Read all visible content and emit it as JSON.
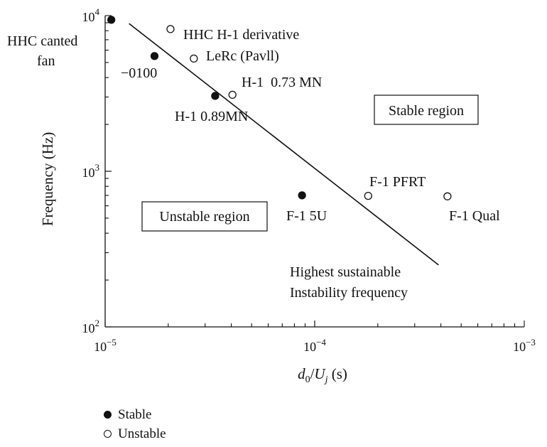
{
  "chart_data": {
    "type": "scatter",
    "xscale": "log",
    "yscale": "log",
    "xlim": [
      1e-05,
      0.001
    ],
    "ylim": [
      100,
      10000
    ],
    "xlabel_base": "d",
    "xlabel_base_sub": "0",
    "xlabel_mid": "/U",
    "xlabel_mid_sub": "j",
    "xlabel_tail": " (s)",
    "ylabel": "Frequency (Hz)",
    "x_ticks": [
      {
        "value": 1e-05,
        "base": "10",
        "exp": "−5"
      },
      {
        "value": 0.0001,
        "base": "10",
        "exp": "−4"
      },
      {
        "value": 0.001,
        "base": "10",
        "exp": "−3"
      }
    ],
    "y_ticks": [
      {
        "value": 100,
        "base": "10",
        "exp": "2"
      },
      {
        "value": 1000,
        "base": "10",
        "exp": "3"
      },
      {
        "value": 10000,
        "base": "10",
        "exp": "4"
      }
    ],
    "grid": false,
    "series": [
      {
        "name": "Stable",
        "marker": "filled-circle",
        "points": [
          {
            "x": 1.07e-05,
            "y": 9400,
            "label": "HHC canted fan"
          },
          {
            "x": 1.72e-05,
            "y": 5500,
            "label": "−0100"
          },
          {
            "x": 3.35e-05,
            "y": 3050,
            "label": "H-1 0.89MN"
          },
          {
            "x": 8.7e-05,
            "y": 700,
            "label": "F-1 5U"
          }
        ]
      },
      {
        "name": "Unstable",
        "marker": "hollow-circle",
        "points": [
          {
            "x": 2.05e-05,
            "y": 8200,
            "label": "HHC H-1 derivative"
          },
          {
            "x": 2.65e-05,
            "y": 5300,
            "label": "LeRc (Pavll)"
          },
          {
            "x": 4.05e-05,
            "y": 3100,
            "label": "H-1  0.73 MN"
          },
          {
            "x": 0.00018,
            "y": 695,
            "label": "F-1 PFRT"
          },
          {
            "x": 0.00043,
            "y": 690,
            "label": "F-1 Qual"
          }
        ]
      }
    ],
    "boundary_line": {
      "label_line1": "Highest sustainable",
      "label_line2": "Instability frequency",
      "points": [
        {
          "x": 1.3e-05,
          "y": 8900
        },
        {
          "x": 0.00039,
          "y": 250
        }
      ]
    },
    "region_labels": {
      "stable": "Stable region",
      "unstable": "Unstable region"
    },
    "legend": {
      "position": "bottom-left",
      "items": [
        {
          "label": "Stable",
          "marker": "filled-circle"
        },
        {
          "label": "Unstable",
          "marker": "hollow-circle"
        }
      ]
    }
  }
}
